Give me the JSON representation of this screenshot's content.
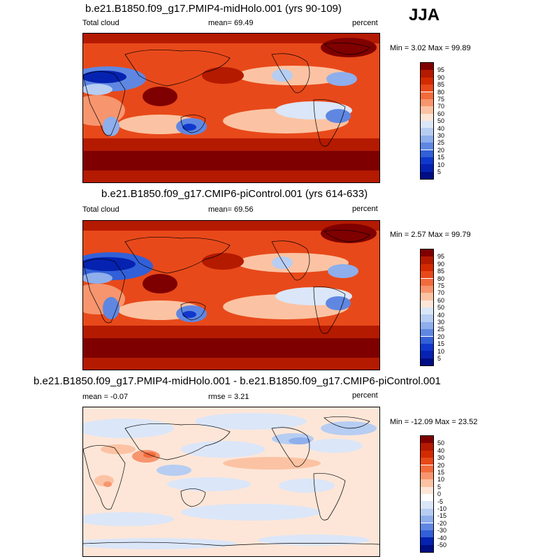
{
  "season": "JJA",
  "chart_data": [
    {
      "type": "heatmap",
      "title": "b.e21.B1850.f09_g17.PMIP4-midHolo.001 (yrs 90-109)",
      "left_label": "Total cloud",
      "center_label": "mean=  69.49",
      "units": "percent",
      "mean": 69.49,
      "min": 3.02,
      "max": 99.89,
      "minmax_label": "Min =   3.02 Max =  99.89",
      "colorbar": {
        "levels": [
          "95",
          "90",
          "85",
          "80",
          "75",
          "70",
          "60",
          "50",
          "40",
          "30",
          "25",
          "20",
          "15",
          "10",
          "5"
        ],
        "colors": [
          "#7f0000",
          "#b41a00",
          "#d42a00",
          "#e8491a",
          "#f26b3c",
          "#f7956e",
          "#fbc3a3",
          "#fde6d8",
          "#dbe6f8",
          "#b7cdf2",
          "#8eaeec",
          "#5f87e2",
          "#3260d8",
          "#1138cc",
          "#0622b0",
          "#000e84"
        ]
      }
    },
    {
      "type": "heatmap",
      "title": "b.e21.B1850.f09_g17.CMIP6-piControl.001 (yrs 614-633)",
      "left_label": "Total cloud",
      "center_label": "mean=  69.56",
      "units": "percent",
      "mean": 69.56,
      "min": 2.57,
      "max": 99.79,
      "minmax_label": "Min =   2.57 Max =  99.79",
      "colorbar": {
        "levels": [
          "95",
          "90",
          "85",
          "80",
          "75",
          "70",
          "60",
          "50",
          "40",
          "30",
          "25",
          "20",
          "15",
          "10",
          "5"
        ],
        "colors": [
          "#7f0000",
          "#b41a00",
          "#d42a00",
          "#e8491a",
          "#f26b3c",
          "#f7956e",
          "#fbc3a3",
          "#fde6d8",
          "#dbe6f8",
          "#b7cdf2",
          "#8eaeec",
          "#5f87e2",
          "#3260d8",
          "#1138cc",
          "#0622b0",
          "#000e84"
        ]
      }
    },
    {
      "type": "heatmap",
      "title": "b.e21.B1850.f09_g17.PMIP4-midHolo.001 - b.e21.B1850.f09_g17.CMIP6-piControl.001",
      "left_label": "mean =  -0.07",
      "center_label": "rmse =   3.21",
      "units": "percent",
      "mean": -0.07,
      "rmse": 3.21,
      "min": -12.09,
      "max": 23.52,
      "minmax_label": "Min = -12.09 Max =  23.52",
      "colorbar": {
        "levels": [
          "50",
          "40",
          "30",
          "20",
          "15",
          "10",
          "5",
          "0",
          "-5",
          "-10",
          "-15",
          "-20",
          "-30",
          "-40",
          "-50"
        ],
        "colors": [
          "#7f0000",
          "#b41a00",
          "#d42a00",
          "#e8491a",
          "#f26b3c",
          "#f7956e",
          "#fbc3a3",
          "#fde6d8",
          "#ffffff",
          "#dbe6f8",
          "#b7cdf2",
          "#8eaeec",
          "#5f87e2",
          "#3260d8",
          "#0622b0",
          "#000e84"
        ]
      }
    }
  ]
}
